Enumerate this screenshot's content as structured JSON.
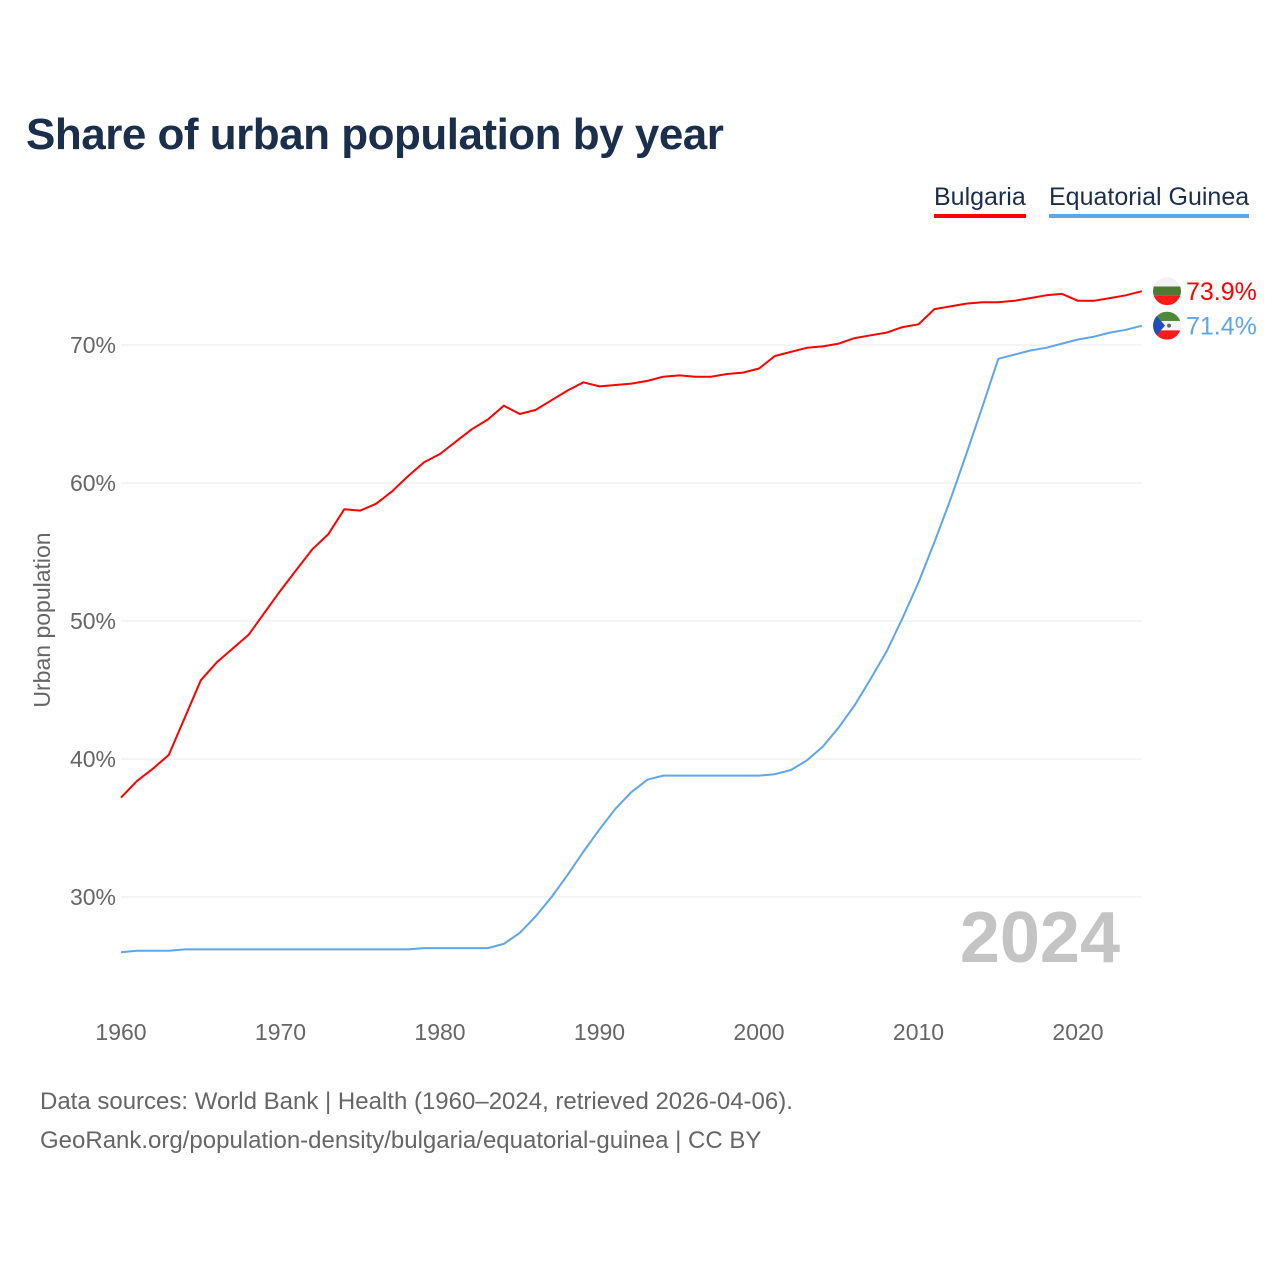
{
  "chart_data": {
    "type": "line",
    "title": "Share of urban population by year",
    "xlabel": "",
    "ylabel": "Urban population",
    "xlim": [
      1960,
      2024
    ],
    "ylim": [
      22,
      76
    ],
    "x_ticks": [
      1960,
      1970,
      1980,
      1990,
      2000,
      2010,
      2020
    ],
    "y_ticks": [
      30,
      40,
      50,
      60,
      70
    ],
    "y_tick_labels": [
      "30%",
      "40%",
      "50%",
      "60%",
      "70%"
    ],
    "grid": true,
    "legend_placement": "top-right",
    "watermark_year": "2024",
    "x": [
      1960,
      1961,
      1962,
      1963,
      1964,
      1965,
      1966,
      1967,
      1968,
      1969,
      1970,
      1971,
      1972,
      1973,
      1974,
      1975,
      1976,
      1977,
      1978,
      1979,
      1980,
      1981,
      1982,
      1983,
      1984,
      1985,
      1986,
      1987,
      1988,
      1989,
      1990,
      1991,
      1992,
      1993,
      1994,
      1995,
      1996,
      1997,
      1998,
      1999,
      2000,
      2001,
      2002,
      2003,
      2004,
      2005,
      2006,
      2007,
      2008,
      2009,
      2010,
      2011,
      2012,
      2013,
      2014,
      2015,
      2016,
      2017,
      2018,
      2019,
      2020,
      2021,
      2022,
      2023,
      2024
    ],
    "series": [
      {
        "name": "Bulgaria",
        "color": "#ff0000",
        "end_label": "73.9%",
        "values": [
          37.2,
          38.4,
          39.3,
          40.3,
          43.0,
          45.7,
          47.0,
          48.0,
          49.0,
          50.6,
          52.2,
          53.7,
          55.2,
          56.3,
          58.1,
          58.0,
          58.5,
          59.4,
          60.5,
          61.5,
          62.1,
          63.0,
          63.9,
          64.6,
          65.6,
          65.0,
          65.3,
          66.0,
          66.7,
          67.3,
          67.0,
          67.1,
          67.2,
          67.4,
          67.7,
          67.8,
          67.7,
          67.7,
          67.9,
          68.0,
          68.3,
          69.2,
          69.5,
          69.8,
          69.9,
          70.1,
          70.5,
          70.7,
          70.9,
          71.3,
          71.5,
          72.6,
          72.8,
          73.0,
          73.1,
          73.1,
          73.2,
          73.4,
          73.6,
          73.7,
          73.2,
          73.2,
          73.4,
          73.6,
          73.9
        ]
      },
      {
        "name": "Equatorial Guinea",
        "color": "#5ea5ea",
        "end_label": "71.4%",
        "values": [
          26.0,
          26.1,
          26.1,
          26.1,
          26.2,
          26.2,
          26.2,
          26.2,
          26.2,
          26.2,
          26.2,
          26.2,
          26.2,
          26.2,
          26.2,
          26.2,
          26.2,
          26.2,
          26.2,
          26.3,
          26.3,
          26.3,
          26.3,
          26.3,
          26.6,
          27.4,
          28.6,
          30.0,
          31.6,
          33.3,
          34.9,
          36.4,
          37.6,
          38.5,
          38.8,
          38.8,
          38.8,
          38.8,
          38.8,
          38.8,
          38.8,
          38.9,
          39.2,
          39.9,
          40.9,
          42.3,
          43.9,
          45.8,
          47.8,
          50.2,
          52.8,
          55.7,
          58.8,
          62.1,
          65.5,
          69.0,
          69.3,
          69.6,
          69.8,
          70.1,
          70.4,
          70.6,
          70.9,
          71.1,
          71.4
        ]
      }
    ]
  },
  "footer": {
    "line1": "Data sources: World Bank | Health (1960–2024, retrieved 2026-04-06).",
    "line2": "GeoRank.org/population-density/bulgaria/equatorial-guinea | CC BY"
  }
}
